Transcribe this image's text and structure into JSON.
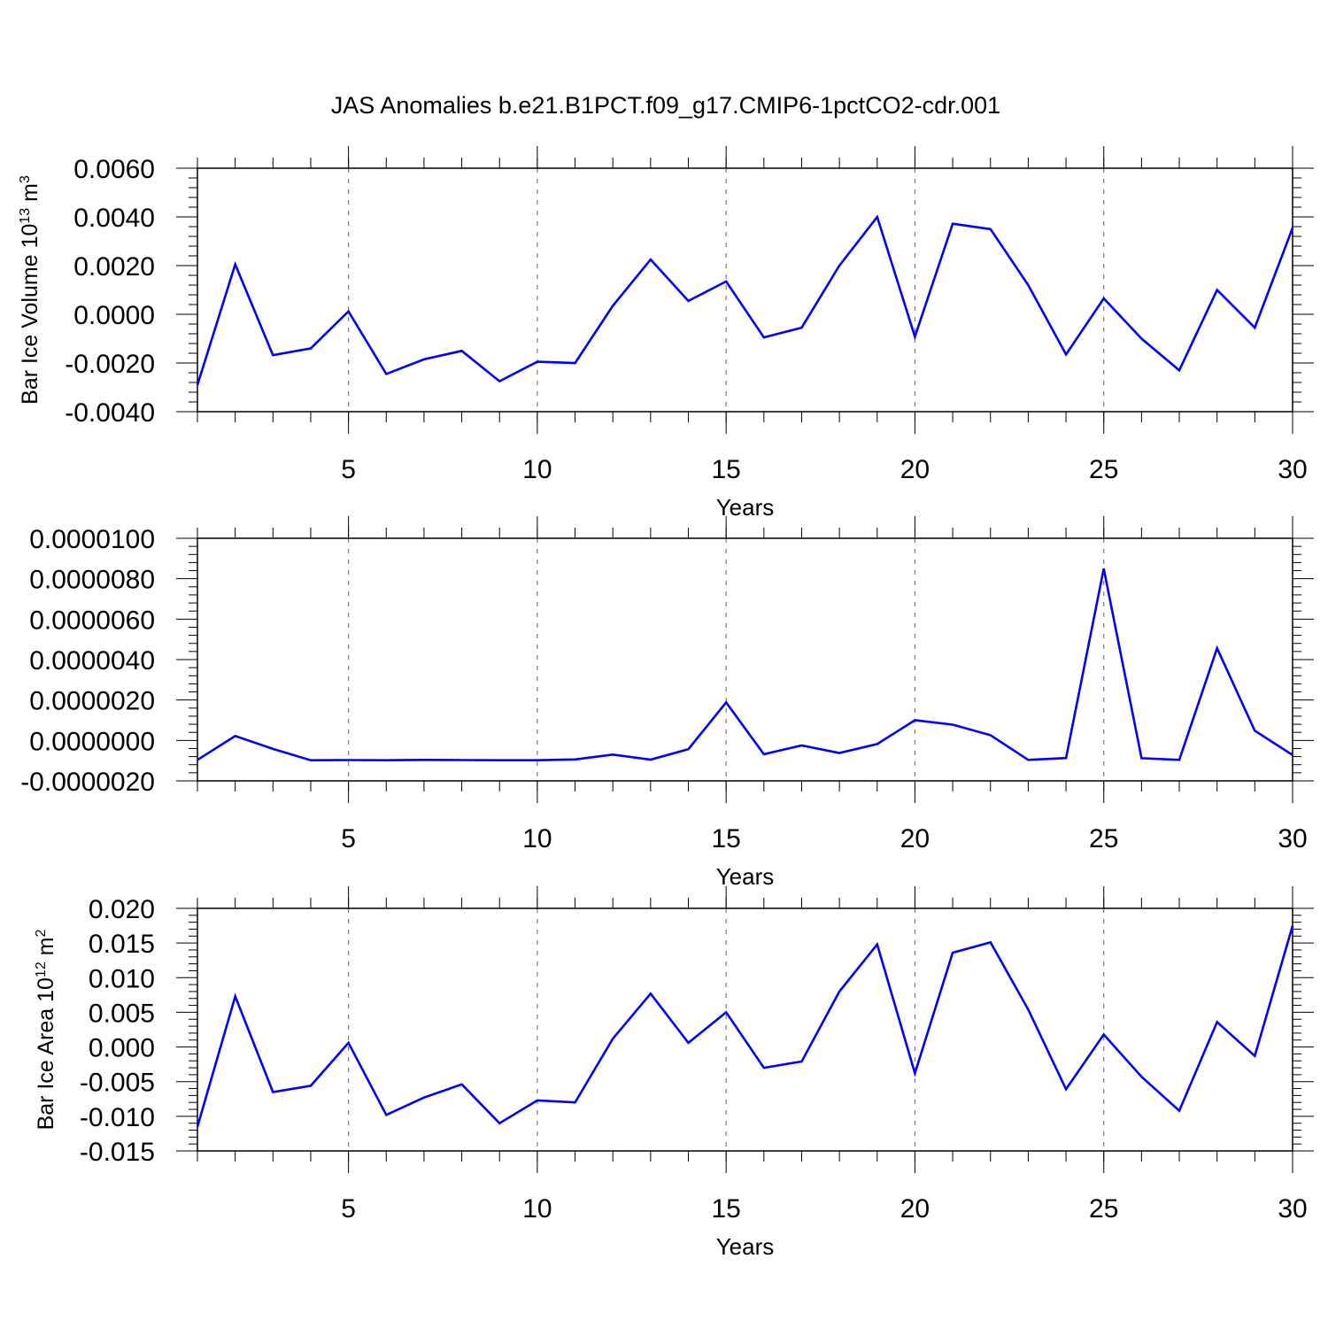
{
  "title": "JAS Anomalies b.e21.B1PCT.f09_g17.CMIP6-1pctCO2-cdr.001",
  "chart_data": [
    {
      "type": "line",
      "ylabel": "Bar Ice Volume 10",
      "ylabel_sup": "13",
      "ylabel_unit": "m",
      "ylabel_unit_sup": "3",
      "xlabel": "Years",
      "xlim": [
        1,
        30
      ],
      "ylim": [
        -0.004,
        0.006
      ],
      "x_ticks": [
        "5",
        "10",
        "15",
        "20",
        "25",
        "30"
      ],
      "y_ticks": [
        "0.0060",
        "0.0040",
        "0.0020",
        "0.0000",
        "-0.0020",
        "-0.0040"
      ],
      "grid": "vertical dashed at major x ticks",
      "color": "#0000ff",
      "x": [
        1,
        2,
        3,
        4,
        5,
        6,
        7,
        8,
        9,
        10,
        11,
        12,
        13,
        14,
        15,
        16,
        17,
        18,
        19,
        20,
        21,
        22,
        23,
        24,
        25,
        26,
        27,
        28,
        29,
        30
      ],
      "values": [
        -0.0029,
        0.00205,
        -0.00168,
        -0.0014,
        0.00012,
        -0.00245,
        -0.00185,
        -0.0015,
        -0.00275,
        -0.00195,
        -0.002,
        0.00035,
        0.00225,
        0.00055,
        0.00135,
        -0.00095,
        -0.00055,
        0.002,
        0.004,
        -0.00092,
        0.00372,
        0.0035,
        0.0012,
        -0.00165,
        0.00065,
        -0.001,
        -0.0023,
        0.001,
        -0.00055,
        0.00355
      ]
    },
    {
      "type": "line",
      "ylabel": "",
      "xlabel": "Years",
      "xlim": [
        1,
        30
      ],
      "ylim": [
        -2e-06,
        1e-05
      ],
      "x_ticks": [
        "5",
        "10",
        "15",
        "20",
        "25",
        "30"
      ],
      "y_ticks": [
        "0.0000100",
        "0.0000080",
        "0.0000060",
        "0.0000040",
        "0.0000020",
        "0.0000000",
        "-0.0000020"
      ],
      "grid": "vertical dashed at major x ticks",
      "color": "#0000ff",
      "x": [
        1,
        2,
        3,
        4,
        5,
        6,
        7,
        8,
        9,
        10,
        11,
        12,
        13,
        14,
        15,
        16,
        17,
        18,
        19,
        20,
        21,
        22,
        23,
        24,
        25,
        26,
        27,
        28,
        29,
        30
      ],
      "values": [
        -9.6e-07,
        2.2e-07,
        -4.2e-07,
        -9.8e-07,
        -9.7e-07,
        -9.8e-07,
        -9.6e-07,
        -9.7e-07,
        -9.8e-07,
        -9.8e-07,
        -9.4e-07,
        -7e-07,
        -9.5e-07,
        -4.3e-07,
        1.88e-06,
        -6.8e-07,
        -2.5e-07,
        -6.2e-07,
        -1.8e-07,
        1e-06,
        7.8e-07,
        2.6e-07,
        -9.6e-07,
        -8.7e-07,
        8.5e-06,
        -8.8e-07,
        -9.6e-07,
        4.56e-06,
        4.8e-07,
        -7.2e-07
      ]
    },
    {
      "type": "line",
      "ylabel": "Bar Ice Area 10",
      "ylabel_sup": "12",
      "ylabel_unit": "m",
      "ylabel_unit_sup": "2",
      "xlabel": "Years",
      "xlim": [
        1,
        30
      ],
      "ylim": [
        -0.015,
        0.02
      ],
      "x_ticks": [
        "5",
        "10",
        "15",
        "20",
        "25",
        "30"
      ],
      "y_ticks": [
        "0.020",
        "0.015",
        "0.010",
        "0.005",
        "0.000",
        "-0.005",
        "-0.010",
        "-0.015"
      ],
      "grid": "vertical dashed at major x ticks",
      "color": "#0000ff",
      "x": [
        1,
        2,
        3,
        4,
        5,
        6,
        7,
        8,
        9,
        10,
        11,
        12,
        13,
        14,
        15,
        16,
        17,
        18,
        19,
        20,
        21,
        22,
        23,
        24,
        25,
        26,
        27,
        28,
        29,
        30
      ],
      "values": [
        -0.0115,
        0.0073,
        -0.0065,
        -0.0056,
        0.0006,
        -0.0098,
        -0.0073,
        -0.0054,
        -0.011,
        -0.0077,
        -0.008,
        0.0012,
        0.0077,
        0.0006,
        0.005,
        -0.003,
        -0.0021,
        0.008,
        0.0148,
        -0.0038,
        0.0136,
        0.0151,
        0.0054,
        -0.0061,
        0.0018,
        -0.0043,
        -0.0092,
        0.0036,
        -0.0013,
        0.0175
      ]
    }
  ]
}
